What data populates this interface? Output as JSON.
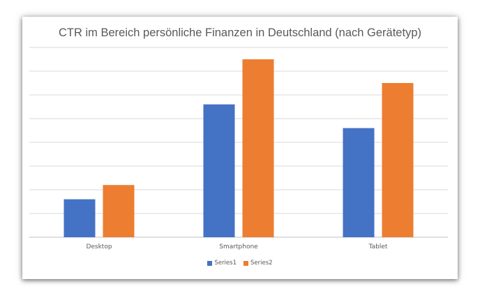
{
  "chart_data": {
    "type": "bar",
    "title": "CTR im Bereich persönliche Finanzen in Deutschland (nach Gerätetyp)",
    "categories": [
      "Desktop",
      "Smartphone",
      "Tablet"
    ],
    "series": [
      {
        "name": "Series1",
        "color": "#4472C4",
        "values": [
          1.6,
          5.6,
          4.6
        ]
      },
      {
        "name": "Series2",
        "color": "#ED7D31",
        "values": [
          2.2,
          7.5,
          6.5
        ]
      }
    ],
    "ylim": [
      0,
      8
    ],
    "grid": true,
    "y_tick_labels_visible": false,
    "legend_position": "bottom"
  }
}
